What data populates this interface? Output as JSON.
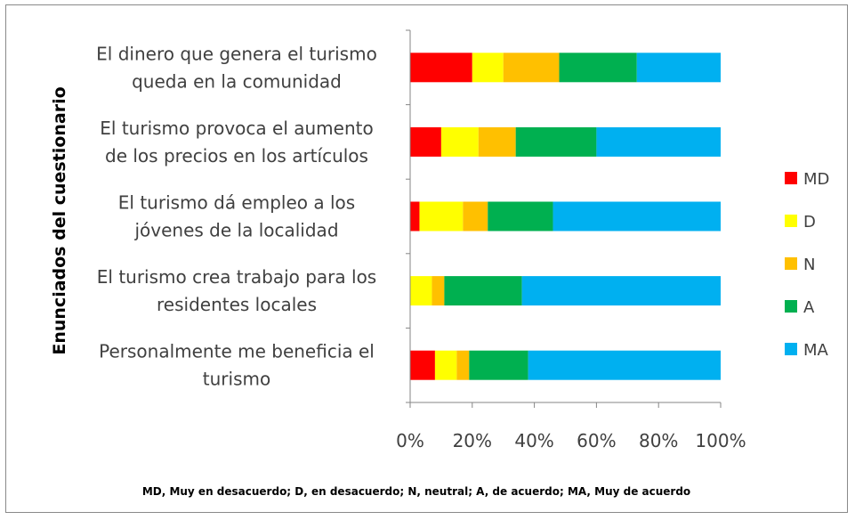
{
  "chart_data": {
    "type": "bar",
    "orientation": "horizontal",
    "stacked": "percent",
    "ylabel": "Enunciados del cuestionario",
    "xlabel": "",
    "xlim": [
      0,
      100
    ],
    "x_ticks": [
      "0%",
      "20%",
      "40%",
      "60%",
      "80%",
      "100%"
    ],
    "categories": [
      [
        "El dinero que genera el turismo",
        "queda en la comunidad"
      ],
      [
        "El turismo provoca el aumento",
        "de los precios en los artículos"
      ],
      [
        "El turismo dá empleo a los",
        "jóvenes de la localidad"
      ],
      [
        "El turismo crea trabajo para los",
        "residentes locales"
      ],
      [
        "Personalmente me beneficia el",
        "turismo"
      ]
    ],
    "series": [
      {
        "name": "MD",
        "color": "#ff0000",
        "values": [
          20,
          10,
          3,
          0,
          8
        ]
      },
      {
        "name": "D",
        "color": "#ffff00",
        "values": [
          10,
          12,
          14,
          7,
          7
        ]
      },
      {
        "name": "N",
        "color": "#ffc000",
        "values": [
          18,
          12,
          8,
          4,
          4
        ]
      },
      {
        "name": "A",
        "color": "#00b050",
        "values": [
          25,
          26,
          21,
          25,
          19
        ]
      },
      {
        "name": "MA",
        "color": "#00b0f0",
        "values": [
          27,
          40,
          54,
          64,
          62
        ]
      }
    ],
    "legend_position": "right",
    "grid": false,
    "footnote": "MD, Muy en desacuerdo; D, en desacuerdo; N, neutral; A, de acuerdo; MA, Muy de acuerdo"
  }
}
